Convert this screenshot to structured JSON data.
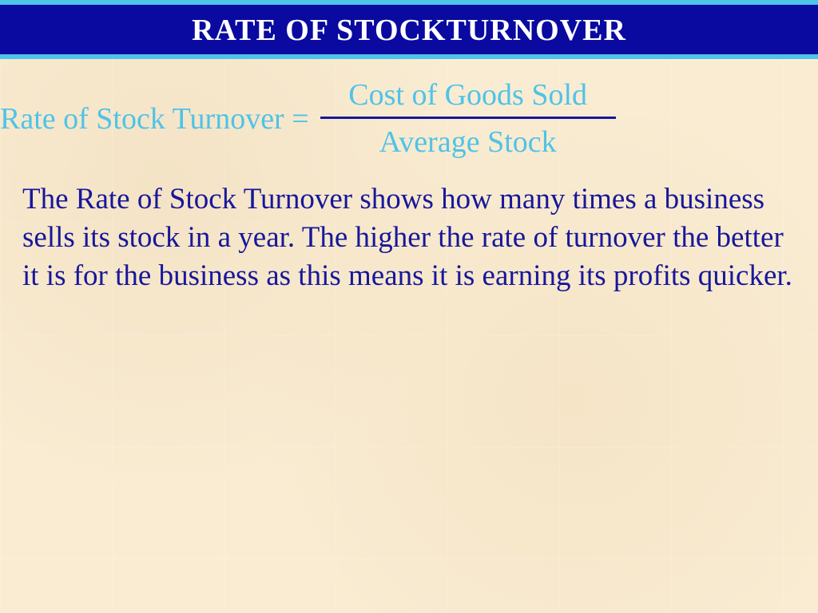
{
  "colors": {
    "title_bg": "#0a0aa0",
    "title_border": "#4fc3e8",
    "title_text": "#ffffff",
    "accent": "#4fc3e8",
    "body_text": "#17179b",
    "fraction_bar": "#17179b"
  },
  "title": "RATE OF STOCKTURNOVER",
  "formula": {
    "lhs": "Rate of Stock Turnover = ",
    "numerator": "Cost of Goods Sold",
    "denominator": "Average Stock"
  },
  "body": "The Rate of Stock Turnover shows how many times a business sells its stock in a year. The higher the rate of turnover the better it is for the business as this means it is earning its profits quicker."
}
